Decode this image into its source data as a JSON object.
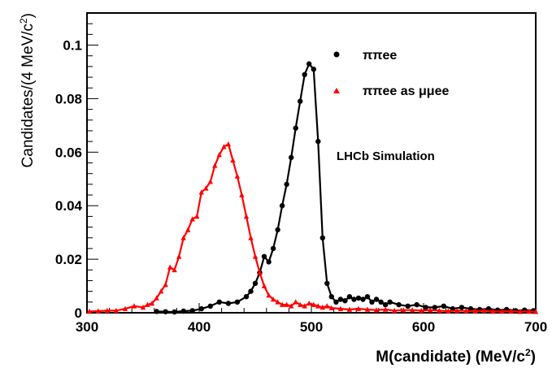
{
  "chart_data": {
    "type": "line",
    "xlabel": "M(candidate) (MeV/c²)",
    "ylabel": "Candidates/(4 MeV/c²)",
    "xlim": [
      300,
      700
    ],
    "ylim": [
      0,
      0.112
    ],
    "x_ticks": [
      "300",
      "400",
      "500",
      "600",
      "700"
    ],
    "y_ticks": [
      "0",
      "0.02",
      "0.04",
      "0.06",
      "0.08",
      "0.1"
    ],
    "y_tick_values": [
      0,
      0.02,
      0.04,
      0.06,
      0.08,
      0.1
    ],
    "x_tick_values": [
      300,
      400,
      500,
      600,
      700
    ],
    "annotation": "LHCb Simulation",
    "legend_position": "top-right",
    "series": [
      {
        "name": "ππee",
        "color": "#000000",
        "marker": "circle",
        "x": [
          362,
          370,
          378,
          386,
          394,
          402,
          410,
          418,
          426,
          434,
          442,
          446,
          450,
          454,
          458,
          462,
          466,
          470,
          474,
          478,
          482,
          486,
          490,
          494,
          498,
          502,
          506,
          510,
          514,
          518,
          522,
          526,
          530,
          534,
          538,
          542,
          546,
          550,
          554,
          558,
          562,
          566,
          570,
          578,
          586,
          594,
          602,
          610,
          618,
          626,
          634,
          642,
          650,
          658,
          666,
          674,
          682,
          690,
          698
        ],
        "values": [
          0.0005,
          0.0004,
          0.0003,
          0.0006,
          0.0008,
          0.0015,
          0.0025,
          0.004,
          0.0035,
          0.004,
          0.006,
          0.008,
          0.011,
          0.015,
          0.021,
          0.019,
          0.024,
          0.031,
          0.04,
          0.048,
          0.058,
          0.069,
          0.079,
          0.089,
          0.093,
          0.091,
          0.064,
          0.028,
          0.011,
          0.006,
          0.004,
          0.005,
          0.0045,
          0.006,
          0.005,
          0.0055,
          0.005,
          0.006,
          0.004,
          0.005,
          0.004,
          0.003,
          0.004,
          0.003,
          0.0025,
          0.003,
          0.002,
          0.002,
          0.0025,
          0.0015,
          0.002,
          0.0015,
          0.0012,
          0.0015,
          0.001,
          0.0012,
          0.0008,
          0.001,
          0.0008
        ]
      },
      {
        "name": "ππee as μμee",
        "color": "#ff0000",
        "marker": "triangle",
        "x": [
          302,
          310,
          318,
          326,
          334,
          342,
          350,
          354,
          358,
          362,
          366,
          370,
          374,
          378,
          382,
          386,
          390,
          394,
          398,
          402,
          406,
          410,
          414,
          418,
          422,
          426,
          430,
          434,
          438,
          442,
          446,
          450,
          454,
          458,
          462,
          466,
          470,
          474,
          478,
          482,
          486,
          490,
          494,
          498,
          502,
          506,
          510,
          514,
          518,
          526,
          534,
          542,
          550,
          558,
          566,
          574,
          582,
          590,
          598,
          606,
          614,
          622,
          630,
          638,
          646,
          654,
          662,
          670,
          678,
          686,
          694,
          700
        ],
        "values": [
          0.0005,
          0.0006,
          0.0008,
          0.0008,
          0.0015,
          0.0025,
          0.002,
          0.003,
          0.0035,
          0.0055,
          0.008,
          0.0105,
          0.017,
          0.016,
          0.021,
          0.028,
          0.031,
          0.035,
          0.036,
          0.045,
          0.0465,
          0.049,
          0.055,
          0.059,
          0.062,
          0.063,
          0.057,
          0.051,
          0.044,
          0.036,
          0.028,
          0.021,
          0.015,
          0.01,
          0.0065,
          0.005,
          0.004,
          0.003,
          0.003,
          0.0025,
          0.004,
          0.003,
          0.0025,
          0.0035,
          0.003,
          0.0025,
          0.002,
          0.0025,
          0.0018,
          0.0015,
          0.0012,
          0.0015,
          0.0012,
          0.001,
          0.0012,
          0.0008,
          0.001,
          0.001,
          0.0008,
          0.001,
          0.0008,
          0.0006,
          0.0008,
          0.0007,
          0.0006,
          0.0008,
          0.0005,
          0.0005,
          0.0006,
          0.0004,
          0.0005,
          0.0004
        ]
      }
    ]
  }
}
